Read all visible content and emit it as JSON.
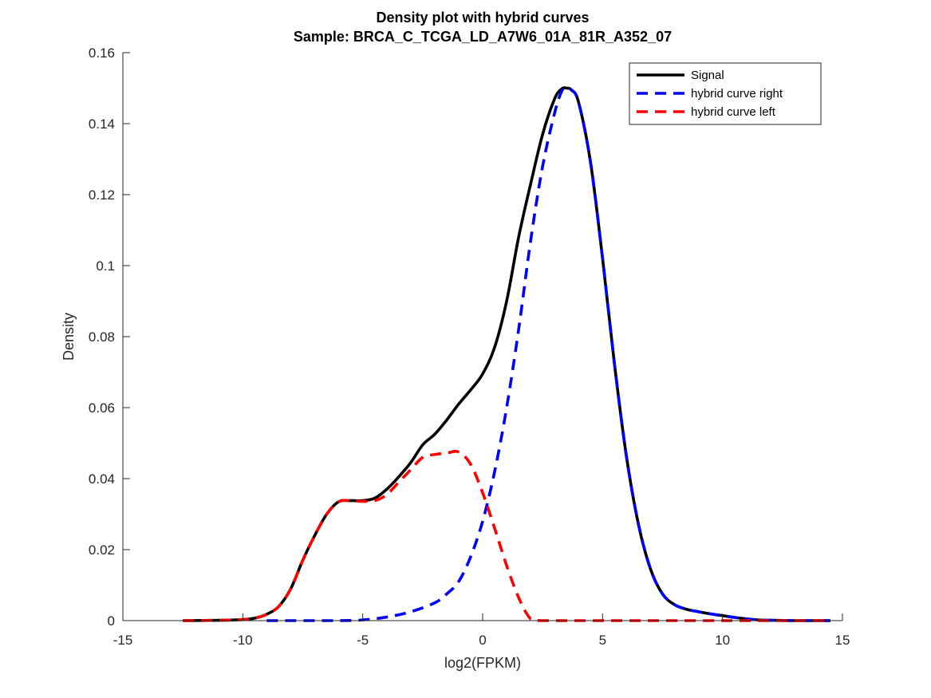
{
  "chart_data": {
    "type": "line",
    "title": "Density plot with hybrid curves",
    "subtitle": "Sample: BRCA_C_TCGA_LD_A7W6_01A_81R_A352_07",
    "xlabel": "log2(FPKM)",
    "ylabel": "Density",
    "xlim": [
      -15,
      15
    ],
    "ylim": [
      0,
      0.16
    ],
    "xticks": [
      -15,
      -10,
      -5,
      0,
      5,
      10,
      15
    ],
    "yticks": [
      0,
      0.02,
      0.04,
      0.06,
      0.08,
      0.1,
      0.12,
      0.14,
      0.16
    ],
    "xtick_labels": [
      "-15",
      "-10",
      "-5",
      "0",
      "5",
      "10",
      "15"
    ],
    "ytick_labels": [
      "0",
      "0.02",
      "0.04",
      "0.06",
      "0.08",
      "0.1",
      "0.12",
      "0.14",
      "0.16"
    ],
    "grid": false,
    "legend_position": "top-right",
    "series": [
      {
        "name": "Signal",
        "color": "#000000",
        "dash": "solid",
        "x": [
          -12.5,
          -11,
          -10,
          -9.5,
          -9,
          -8.5,
          -8,
          -7.5,
          -7,
          -6.5,
          -6,
          -5.5,
          -5,
          -4.5,
          -4,
          -3.5,
          -3,
          -2.5,
          -2,
          -1.5,
          -1,
          -0.5,
          0,
          0.5,
          1,
          1.5,
          2,
          2.5,
          3,
          3.3,
          3.5,
          3.7,
          4,
          4.5,
          5,
          5.5,
          6,
          6.5,
          7,
          7.5,
          8,
          8.5,
          9,
          9.5,
          10,
          10.5,
          11,
          11.5,
          12,
          13,
          14.5
        ],
        "y": [
          0,
          0.0001,
          0.0003,
          0.0007,
          0.0018,
          0.004,
          0.009,
          0.017,
          0.024,
          0.03,
          0.0335,
          0.0338,
          0.0338,
          0.0345,
          0.037,
          0.0405,
          0.0445,
          0.0495,
          0.0525,
          0.0565,
          0.061,
          0.065,
          0.0695,
          0.077,
          0.09,
          0.108,
          0.123,
          0.137,
          0.147,
          0.1498,
          0.15,
          0.1495,
          0.146,
          0.129,
          0.102,
          0.072,
          0.046,
          0.027,
          0.0145,
          0.0075,
          0.0045,
          0.0032,
          0.0025,
          0.0019,
          0.0014,
          0.0009,
          0.0005,
          0.0002,
          0.0001,
          0,
          0
        ]
      },
      {
        "name": "hybrid curve right",
        "color": "#0000ff",
        "dash": "dashed",
        "x": [
          -9,
          -6,
          -5,
          -4,
          -3,
          -2,
          -1.5,
          -1,
          -0.5,
          0,
          0.5,
          1,
          1.5,
          2,
          2.5,
          3,
          3.3,
          3.5,
          3.7,
          4,
          4.5,
          5,
          5.5,
          6,
          6.5,
          7,
          7.5,
          8,
          8.5,
          9,
          9.5,
          10,
          10.5,
          11,
          11.5,
          12,
          13,
          14.5
        ],
        "y": [
          0,
          0,
          0.0002,
          0.001,
          0.0025,
          0.005,
          0.0075,
          0.011,
          0.018,
          0.028,
          0.042,
          0.06,
          0.082,
          0.107,
          0.128,
          0.143,
          0.1492,
          0.15,
          0.1495,
          0.146,
          0.129,
          0.102,
          0.072,
          0.046,
          0.027,
          0.0145,
          0.0075,
          0.0045,
          0.0032,
          0.0025,
          0.0019,
          0.0014,
          0.0009,
          0.0005,
          0.0002,
          0.0001,
          0,
          0
        ]
      },
      {
        "name": "hybrid curve left",
        "color": "#ff0000",
        "dash": "dashed",
        "x": [
          -12.5,
          -11,
          -10,
          -9.5,
          -9,
          -8.5,
          -8,
          -7.5,
          -7,
          -6.5,
          -6,
          -5.5,
          -5,
          -4.5,
          -4,
          -3.5,
          -3,
          -2.5,
          -2,
          -1.5,
          -1,
          -0.5,
          0,
          0.5,
          1,
          1.5,
          2,
          2.5,
          5,
          10,
          14.5
        ],
        "y": [
          0,
          0.0001,
          0.0003,
          0.0007,
          0.0018,
          0.004,
          0.009,
          0.017,
          0.024,
          0.03,
          0.0335,
          0.0338,
          0.0336,
          0.0338,
          0.0355,
          0.039,
          0.0425,
          0.046,
          0.0468,
          0.0472,
          0.0475,
          0.044,
          0.036,
          0.026,
          0.0155,
          0.0065,
          0.0005,
          0,
          0,
          0,
          0
        ]
      }
    ]
  }
}
